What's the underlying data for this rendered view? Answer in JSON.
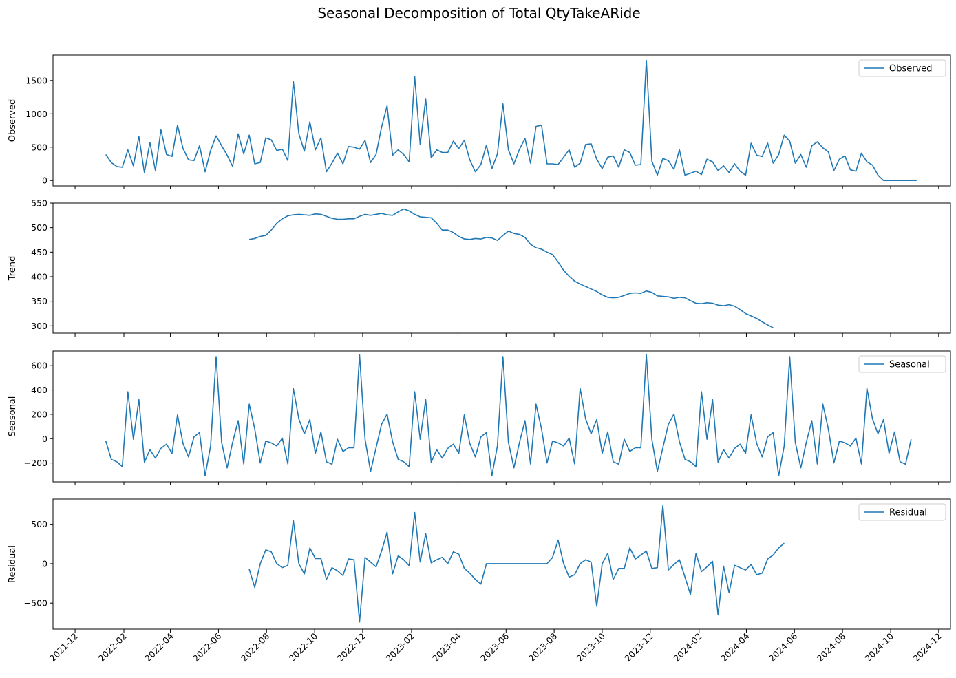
{
  "chart_data": {
    "type": "line",
    "title": "Seasonal Decomposition of Total QtyTakeARide",
    "line_color": "#1f77b4",
    "x_ticks": [
      "2021-12",
      "2022-02",
      "2022-04",
      "2022-06",
      "2022-08",
      "2022-10",
      "2022-12",
      "2023-02",
      "2023-04",
      "2023-06",
      "2023-08",
      "2023-10",
      "2023-12",
      "2024-02",
      "2024-04",
      "2024-06",
      "2024-08",
      "2024-10",
      "2024-12"
    ],
    "x_start": "2022-01-09",
    "x_step_days": 7,
    "panels": [
      {
        "name": "Observed",
        "ylabel": "Observed",
        "legend": "Observed",
        "ylim": [
          -80,
          1880
        ],
        "yticks": [
          0,
          500,
          1000,
          1500
        ],
        "offset": 0,
        "values": [
          390,
          270,
          210,
          200,
          460,
          220,
          660,
          120,
          570,
          150,
          760,
          390,
          360,
          830,
          480,
          310,
          300,
          520,
          130,
          450,
          670,
          520,
          380,
          210,
          700,
          400,
          680,
          250,
          270,
          640,
          610,
          450,
          470,
          300,
          1490,
          700,
          440,
          880,
          460,
          640,
          130,
          260,
          410,
          250,
          510,
          500,
          470,
          600,
          270,
          390,
          800,
          1120,
          380,
          460,
          390,
          280,
          1560,
          540,
          1220,
          340,
          460,
          420,
          420,
          590,
          480,
          600,
          310,
          130,
          240,
          530,
          180,
          400,
          1150,
          460,
          250,
          470,
          630,
          260,
          810,
          830,
          250,
          250,
          240,
          350,
          460,
          200,
          260,
          540,
          550,
          320,
          180,
          350,
          370,
          200,
          460,
          420,
          230,
          240,
          1800,
          290,
          80,
          330,
          300,
          170,
          460,
          80,
          110,
          140,
          90,
          320,
          280,
          150,
          220,
          120,
          250,
          140,
          80,
          560,
          380,
          360,
          560,
          260,
          390,
          680,
          590,
          260,
          390,
          200,
          520,
          580,
          490,
          430,
          150,
          320,
          370,
          160,
          140,
          410,
          280,
          230,
          80,
          0,
          0,
          0,
          0,
          0,
          0,
          0
        ]
      },
      {
        "name": "Trend",
        "ylabel": "Trend",
        "legend": "",
        "ylim": [
          285,
          550
        ],
        "yticks": [
          300,
          350,
          400,
          450,
          500,
          550
        ],
        "offset": 26,
        "values": [
          476,
          478,
          482,
          484,
          495,
          509,
          518,
          524,
          526,
          527,
          526,
          525,
          528,
          527,
          523,
          519,
          517,
          517,
          518,
          518,
          523,
          527,
          525,
          527,
          529,
          526,
          525,
          532,
          538,
          534,
          527,
          522,
          521,
          520,
          509,
          495,
          495,
          490,
          482,
          477,
          476,
          478,
          477,
          480,
          479,
          474,
          484,
          493,
          488,
          486,
          480,
          466,
          459,
          456,
          450,
          445,
          430,
          413,
          401,
          391,
          385,
          380,
          375,
          370,
          363,
          358,
          357,
          358,
          362,
          366,
          367,
          366,
          371,
          368,
          361,
          360,
          359,
          356,
          358,
          357,
          351,
          346,
          345,
          347,
          346,
          342,
          341,
          343,
          340,
          333,
          325,
          320,
          315,
          308,
          302,
          296
        ]
      },
      {
        "name": "Seasonal",
        "ylabel": "Seasonal",
        "legend": "Seasonal",
        "ylim": [
          -355,
          720
        ],
        "yticks": [
          -200,
          0,
          200,
          400,
          600
        ],
        "offset": 0,
        "values": [
          -20,
          -170,
          -190,
          -230,
          385,
          -5,
          320,
          -195,
          -90,
          -160,
          -80,
          -45,
          -120,
          195,
          -40,
          -150,
          15,
          50,
          -305,
          -60,
          675,
          -30,
          -240,
          -30,
          148,
          -208,
          283,
          80,
          -200,
          -20,
          -35,
          -60,
          5,
          -208,
          413,
          162,
          40,
          157,
          -120,
          55,
          -190,
          -210,
          -5,
          -105,
          -75,
          -75,
          690,
          -5,
          -270,
          -75,
          118,
          202,
          -25,
          -170,
          -190,
          -230,
          385,
          -5,
          320,
          -195,
          -90,
          -160,
          -80,
          -45,
          -120,
          195,
          -40,
          -150,
          15,
          50,
          -305,
          -60,
          675,
          -30,
          -240,
          -30,
          148,
          -208,
          283,
          80,
          -200,
          -20,
          -35,
          -60,
          5,
          -208,
          413,
          162,
          40,
          157,
          -120,
          55,
          -190,
          -210,
          -5,
          -105,
          -75,
          -75,
          690,
          -5,
          -270,
          -75,
          118,
          202,
          -25,
          -170,
          -190,
          -230,
          385,
          -5,
          320,
          -195,
          -90,
          -160,
          -80,
          -45,
          -120,
          195,
          -40,
          -150,
          15,
          50,
          -305,
          -60,
          675,
          -30,
          -240,
          -30,
          148,
          -208,
          283,
          80,
          -200,
          -20,
          -35,
          -60,
          5,
          -208,
          413,
          162,
          40,
          157,
          -120,
          55,
          -190,
          -210,
          -5
        ]
      },
      {
        "name": "Residual",
        "ylabel": "Residual",
        "legend": "Residual",
        "ylim": [
          -830,
          820
        ],
        "yticks": [
          -500,
          0,
          500
        ],
        "offset": 26,
        "values": [
          -70,
          -300,
          0,
          175,
          150,
          0,
          -50,
          -20,
          550,
          0,
          -130,
          200,
          65,
          65,
          -200,
          -50,
          -90,
          -150,
          60,
          50,
          -740,
          80,
          20,
          -40,
          160,
          400,
          -130,
          100,
          50,
          -25,
          650,
          20,
          380,
          10,
          50,
          80,
          0,
          150,
          120,
          -60,
          -120,
          -200,
          -260,
          0,
          0,
          0,
          0,
          0,
          0,
          0,
          0,
          0,
          0,
          0,
          0,
          80,
          300,
          0,
          -170,
          -140,
          0,
          50,
          20,
          -540,
          0,
          130,
          -200,
          -60,
          -60,
          200,
          60,
          110,
          160,
          -60,
          -50,
          740,
          -80,
          -10,
          50,
          -170,
          -390,
          130,
          -100,
          -40,
          30,
          -650,
          -30,
          -370,
          -20,
          -50,
          -80,
          -10,
          -140,
          -120,
          60,
          110,
          200,
          260
        ]
      }
    ]
  }
}
